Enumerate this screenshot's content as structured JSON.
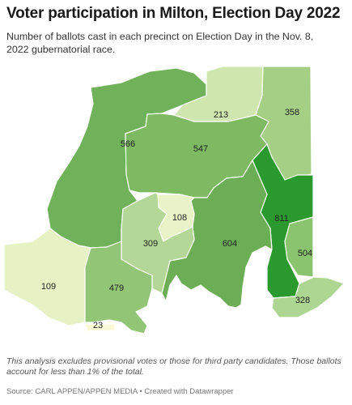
{
  "header": {
    "title": "Voter participation in Milton, Election Day 2022",
    "subtitle": "Number of ballots cast in each precinct on Election Day in the Nov. 8, 2022 gubernatorial race."
  },
  "map": {
    "precincts": [
      {
        "id": "p566",
        "label": "566",
        "value": 566,
        "color": "#6fb25a"
      },
      {
        "id": "p213",
        "label": "213",
        "value": 213,
        "color": "#cfe6ae"
      },
      {
        "id": "p358",
        "label": "358",
        "value": 358,
        "color": "#a4cf85"
      },
      {
        "id": "p547",
        "label": "547",
        "value": 547,
        "color": "#7dba62"
      },
      {
        "id": "p811",
        "label": "811",
        "value": 811,
        "color": "#2a9a2e"
      },
      {
        "id": "p108",
        "label": "108",
        "value": 108,
        "color": "#e9f3c8"
      },
      {
        "id": "p309",
        "label": "309",
        "value": 309,
        "color": "#b3d796"
      },
      {
        "id": "p604",
        "label": "604",
        "value": 604,
        "color": "#6cae55"
      },
      {
        "id": "p504",
        "label": "504",
        "value": 504,
        "color": "#8bc46e"
      },
      {
        "id": "p109",
        "label": "109",
        "value": 109,
        "color": "#e6f1c4"
      },
      {
        "id": "p479",
        "label": "479",
        "value": 479,
        "color": "#92c676"
      },
      {
        "id": "p328",
        "label": "328",
        "value": 328,
        "color": "#add692"
      },
      {
        "id": "p23",
        "label": "23",
        "value": 23,
        "color": "#fbfad6"
      }
    ]
  },
  "footer": {
    "note": "This analysis excludes provisional votes or those for third party candidates. Those ballots account for less than 1% of the total.",
    "source": "Source: CARL APPEN/APPEN MEDIA • Created with Datawrapper"
  }
}
